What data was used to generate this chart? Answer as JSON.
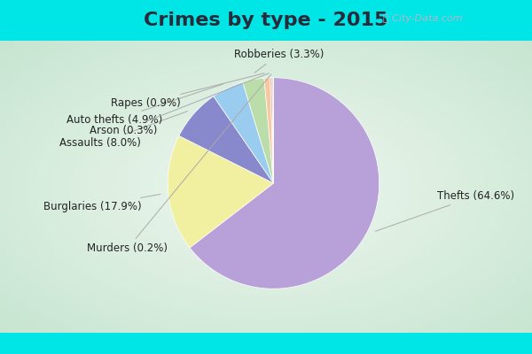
{
  "title": "Crimes by type - 2015",
  "title_fontsize": 16,
  "title_fontweight": "bold",
  "labels": [
    "Thefts",
    "Burglaries",
    "Assaults",
    "Auto thefts",
    "Robberies",
    "Rapes",
    "Arson",
    "Murders"
  ],
  "values": [
    64.6,
    17.9,
    8.0,
    4.9,
    3.3,
    0.9,
    0.3,
    0.2
  ],
  "percentages": [
    "64.6%",
    "17.9%",
    "8.0%",
    "4.9%",
    "3.3%",
    "0.9%",
    "0.3%",
    "0.2%"
  ],
  "colors": [
    "#b8a0d8",
    "#f0f0a0",
    "#8888cc",
    "#99ccee",
    "#bbddaa",
    "#f5c8a0",
    "#f0b0b0",
    "#c8ddc0"
  ],
  "cyan_color": "#00e5e5",
  "bg_center": "#dff2e0",
  "bg_edge": "#c8ecd0",
  "title_color": "#2a2a3a",
  "label_color": "#222222",
  "label_fontsize": 8.5,
  "watermark_color": "#aabbcc",
  "startangle": 90,
  "wedge_edge_color": "white",
  "wedge_linewidth": 0.5
}
